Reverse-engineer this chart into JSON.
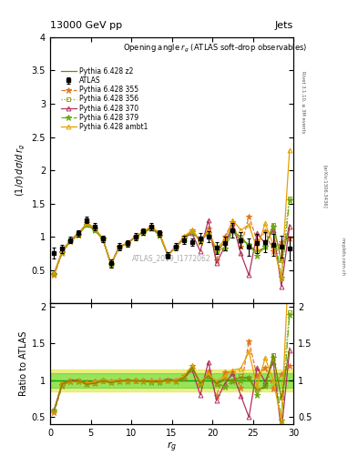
{
  "title_top": "13000 GeV pp",
  "title_right": "Jets",
  "panel_title": "Opening angle $r_g$ (ATLAS soft-drop observables)",
  "ylabel_main": "(1/σ) dσ/d r_g",
  "ylabel_ratio": "Ratio to ATLAS",
  "xlabel": "$r_g$",
  "watermark": "ATLAS_2019_I1772062",
  "rivet_label": "Rivet 3.1.10, ≥ 3M events",
  "arxiv_label": "[arXiv:1306.3436]",
  "mcplots_label": "mcplots.cern.ch",
  "ylim_main": [
    0,
    4
  ],
  "ylim_ratio": [
    0.4,
    2.05
  ],
  "xmin": 0,
  "xmax": 30,
  "x_data": [
    0.5,
    1.5,
    2.5,
    3.5,
    4.5,
    5.5,
    6.5,
    7.5,
    8.5,
    9.5,
    10.5,
    11.5,
    12.5,
    13.5,
    14.5,
    15.5,
    16.5,
    17.5,
    18.5,
    19.5,
    20.5,
    21.5,
    22.5,
    23.5,
    24.5,
    25.5,
    26.5,
    27.5,
    28.5,
    29.5
  ],
  "atlas_y": [
    0.75,
    0.82,
    0.95,
    1.05,
    1.25,
    1.15,
    0.97,
    0.6,
    0.85,
    0.9,
    1.0,
    1.08,
    1.15,
    1.05,
    0.72,
    0.85,
    0.95,
    0.92,
    0.98,
    1.0,
    0.83,
    0.9,
    1.1,
    0.95,
    0.85,
    0.9,
    0.92,
    0.88,
    0.85,
    0.82
  ],
  "atlas_yerr": [
    0.08,
    0.06,
    0.05,
    0.05,
    0.05,
    0.05,
    0.05,
    0.06,
    0.05,
    0.05,
    0.05,
    0.05,
    0.05,
    0.05,
    0.05,
    0.06,
    0.06,
    0.06,
    0.07,
    0.08,
    0.09,
    0.1,
    0.11,
    0.12,
    0.13,
    0.14,
    0.15,
    0.16,
    0.17,
    0.18
  ],
  "series": [
    {
      "name": "Pythia 6.428 355",
      "color": "#e07820",
      "marker": "*",
      "linestyle": "--",
      "y": [
        0.42,
        0.76,
        0.93,
        1.03,
        1.21,
        1.13,
        0.97,
        0.59,
        0.85,
        0.9,
        1.0,
        1.08,
        1.15,
        1.05,
        0.72,
        0.85,
        1.0,
        1.1,
        0.92,
        1.12,
        0.65,
        1.0,
        1.22,
        0.85,
        1.3,
        0.95,
        1.08,
        0.78,
        0.92,
        0.98
      ]
    },
    {
      "name": "Pythia 6.428 356",
      "color": "#90a020",
      "marker": "s",
      "linestyle": ":",
      "y": [
        0.44,
        0.78,
        0.94,
        1.04,
        1.18,
        1.1,
        0.96,
        0.58,
        0.84,
        0.9,
        1.0,
        1.07,
        1.13,
        1.03,
        0.72,
        0.84,
        0.98,
        1.08,
        0.95,
        1.05,
        0.78,
        0.92,
        1.1,
        1.0,
        0.88,
        0.78,
        0.85,
        1.18,
        0.65,
        1.58
      ]
    },
    {
      "name": "Pythia 6.428 370",
      "color": "#b03060",
      "marker": "^",
      "linestyle": "-",
      "y": [
        0.45,
        0.79,
        0.95,
        1.05,
        1.2,
        1.12,
        0.97,
        0.59,
        0.85,
        0.9,
        1.0,
        1.08,
        1.14,
        1.04,
        0.73,
        0.85,
        0.98,
        1.05,
        0.78,
        1.25,
        0.6,
        0.85,
        1.2,
        0.75,
        0.42,
        1.05,
        0.9,
        1.1,
        0.25,
        1.15
      ]
    },
    {
      "name": "Pythia 6.428 379",
      "color": "#6aaa10",
      "marker": "*",
      "linestyle": "-.",
      "y": [
        0.44,
        0.77,
        0.93,
        1.03,
        1.18,
        1.1,
        0.96,
        0.58,
        0.84,
        0.89,
        0.99,
        1.06,
        1.12,
        1.02,
        0.72,
        0.84,
        0.97,
        1.07,
        0.93,
        1.05,
        0.8,
        0.82,
        1.08,
        0.95,
        0.88,
        0.72,
        0.85,
        1.15,
        0.38,
        1.55
      ]
    },
    {
      "name": "Pythia 6.428 ambt1",
      "color": "#e8a000",
      "marker": "^",
      "linestyle": "-",
      "y": [
        0.44,
        0.79,
        0.94,
        1.04,
        1.2,
        1.12,
        0.97,
        0.59,
        0.85,
        0.9,
        1.0,
        1.08,
        1.15,
        1.05,
        0.72,
        0.85,
        1.0,
        1.1,
        0.95,
        1.08,
        0.82,
        0.95,
        1.25,
        1.1,
        1.18,
        0.82,
        1.2,
        0.88,
        0.38,
        2.3
      ]
    },
    {
      "name": "Pythia 6.428 z2",
      "color": "#808000",
      "marker": "",
      "linestyle": "-",
      "y": [
        0.44,
        0.78,
        0.94,
        1.04,
        1.18,
        1.1,
        0.96,
        0.58,
        0.84,
        0.9,
        0.99,
        1.07,
        1.13,
        1.03,
        0.72,
        0.84,
        0.98,
        1.08,
        0.94,
        1.06,
        0.79,
        0.91,
        1.09,
        0.99,
        0.87,
        0.77,
        0.84,
        1.19,
        0.63,
        1.18
      ]
    }
  ],
  "atlas_band_color": "#00cc00",
  "atlas_band_alpha": 0.35,
  "atlas_band_lo": 0.9,
  "atlas_band_hi": 1.1,
  "yellow_band_color": "#dddd00",
  "yellow_band_alpha": 0.45,
  "yellow_band_lo": 0.85,
  "yellow_band_hi": 1.15
}
